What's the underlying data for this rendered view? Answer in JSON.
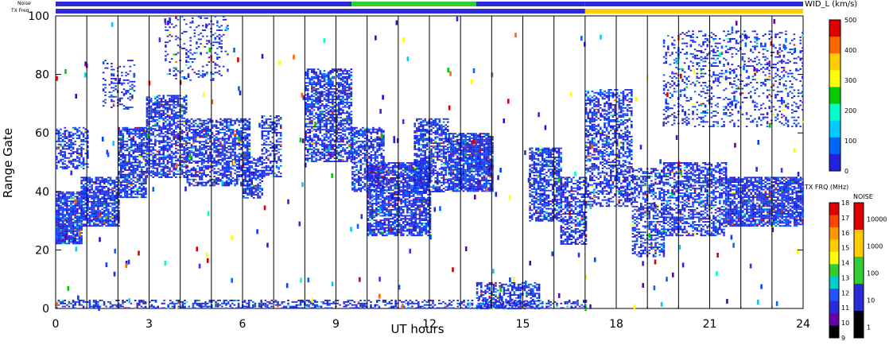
{
  "chart_data": {
    "type": "heatmap",
    "xlabel": "UT hours",
    "ylabel": "Range Gate",
    "xlim": [
      0,
      24
    ],
    "ylim": [
      0,
      100
    ],
    "x_ticks": [
      "0",
      "3",
      "6",
      "9",
      "12",
      "15",
      "18",
      "21",
      "24"
    ],
    "y_ticks": [
      "0",
      "20",
      "40",
      "60",
      "80",
      "100"
    ],
    "hour_lines": [
      1,
      2,
      3,
      4,
      5,
      6,
      7,
      8,
      9,
      10,
      11,
      12,
      13,
      14,
      15,
      16,
      17,
      18,
      19,
      20,
      21,
      22,
      23
    ],
    "strip_labels": {
      "noise": "Noise",
      "txfreq": "TX Freq"
    },
    "strips": {
      "noise": [
        {
          "from": 0,
          "to": 9.5,
          "color": "#2a2ad8"
        },
        {
          "from": 9.5,
          "to": 13.5,
          "color": "#33cc33"
        },
        {
          "from": 13.5,
          "to": 17,
          "color": "#2a2ad8"
        },
        {
          "from": 17,
          "to": 24,
          "color": "#2a2ad8"
        }
      ],
      "txfreq": [
        {
          "from": 0,
          "to": 17,
          "color": "#2a2ad8"
        },
        {
          "from": 17,
          "to": 24,
          "color": "#ffcc00"
        }
      ]
    },
    "scatter_colorbar": {
      "title": "WID_L (km/s)",
      "ticks": [
        "500",
        "400",
        "300",
        "200",
        "100",
        "0"
      ],
      "colors": [
        "#dd0000",
        "#ff6600",
        "#ffcc00",
        "#ffff00",
        "#00cc00",
        "#00ffcc",
        "#00ccff",
        "#0066ff",
        "#2222dd"
      ]
    },
    "freq_colorbar": {
      "title": "TX FRQ (MHz)",
      "ticks": [
        "18",
        "17",
        "16",
        "15",
        "14",
        "13",
        "12",
        "11",
        "10",
        "9"
      ],
      "colors": [
        "#dd0000",
        "#ff4400",
        "#ff9900",
        "#ffcc00",
        "#ffff00",
        "#33cc33",
        "#00cccc",
        "#2255ff",
        "#2a2ad8",
        "#6600aa",
        "#000000"
      ]
    },
    "noise_colorbar": {
      "title": "NOISE",
      "ticks": [
        "10000",
        "1000",
        "100",
        "10",
        "1"
      ],
      "colors": [
        "#dd0000",
        "#ffcc00",
        "#33cc33",
        "#2a2ad8",
        "#000000"
      ]
    },
    "bands": [
      {
        "t0": 0.0,
        "t1": 0.8,
        "g0": 22,
        "g1": 40,
        "density": 0.85
      },
      {
        "t0": 0.0,
        "t1": 1.0,
        "g0": 48,
        "g1": 62,
        "density": 0.5
      },
      {
        "t0": 0.8,
        "t1": 2.0,
        "g0": 28,
        "g1": 45,
        "density": 0.8
      },
      {
        "t0": 2.0,
        "t1": 2.9,
        "g0": 38,
        "g1": 62,
        "density": 0.7
      },
      {
        "t0": 2.9,
        "t1": 4.2,
        "g0": 45,
        "g1": 73,
        "density": 0.65
      },
      {
        "t0": 4.2,
        "t1": 6.2,
        "g0": 42,
        "g1": 65,
        "density": 0.6
      },
      {
        "t0": 6.0,
        "t1": 6.6,
        "g0": 38,
        "g1": 52,
        "density": 0.6
      },
      {
        "t0": 6.6,
        "t1": 7.2,
        "g0": 45,
        "g1": 66,
        "density": 0.5
      },
      {
        "t0": 8.0,
        "t1": 9.5,
        "g0": 50,
        "g1": 82,
        "density": 0.65
      },
      {
        "t0": 9.5,
        "t1": 10.5,
        "g0": 40,
        "g1": 62,
        "density": 0.6
      },
      {
        "t0": 10.0,
        "t1": 12.0,
        "g0": 25,
        "g1": 50,
        "density": 0.75
      },
      {
        "t0": 11.5,
        "t1": 12.6,
        "g0": 40,
        "g1": 65,
        "density": 0.65
      },
      {
        "t0": 12.6,
        "t1": 14.0,
        "g0": 40,
        "g1": 60,
        "density": 0.85
      },
      {
        "t0": 15.2,
        "t1": 16.2,
        "g0": 30,
        "g1": 55,
        "density": 0.65
      },
      {
        "t0": 16.2,
        "t1": 17.0,
        "g0": 22,
        "g1": 45,
        "density": 0.6
      },
      {
        "t0": 17.0,
        "t1": 18.5,
        "g0": 35,
        "g1": 75,
        "density": 0.5
      },
      {
        "t0": 18.5,
        "t1": 19.5,
        "g0": 18,
        "g1": 48,
        "density": 0.5
      },
      {
        "t0": 19.5,
        "t1": 21.5,
        "g0": 25,
        "g1": 50,
        "density": 0.55
      },
      {
        "t0": 21.5,
        "t1": 24.0,
        "g0": 28,
        "g1": 45,
        "density": 0.8
      },
      {
        "t0": 0.0,
        "t1": 17.0,
        "g0": 0,
        "g1": 3,
        "density": 0.45
      },
      {
        "t0": 13.5,
        "t1": 15.5,
        "g0": 0,
        "g1": 9,
        "density": 0.55
      },
      {
        "t0": 19.5,
        "t1": 24.0,
        "g0": 62,
        "g1": 95,
        "density": 0.22
      },
      {
        "t0": 3.5,
        "t1": 5.5,
        "g0": 78,
        "g1": 100,
        "density": 0.18
      },
      {
        "t0": 1.5,
        "t1": 2.5,
        "g0": 68,
        "g1": 85,
        "density": 0.25
      }
    ]
  }
}
